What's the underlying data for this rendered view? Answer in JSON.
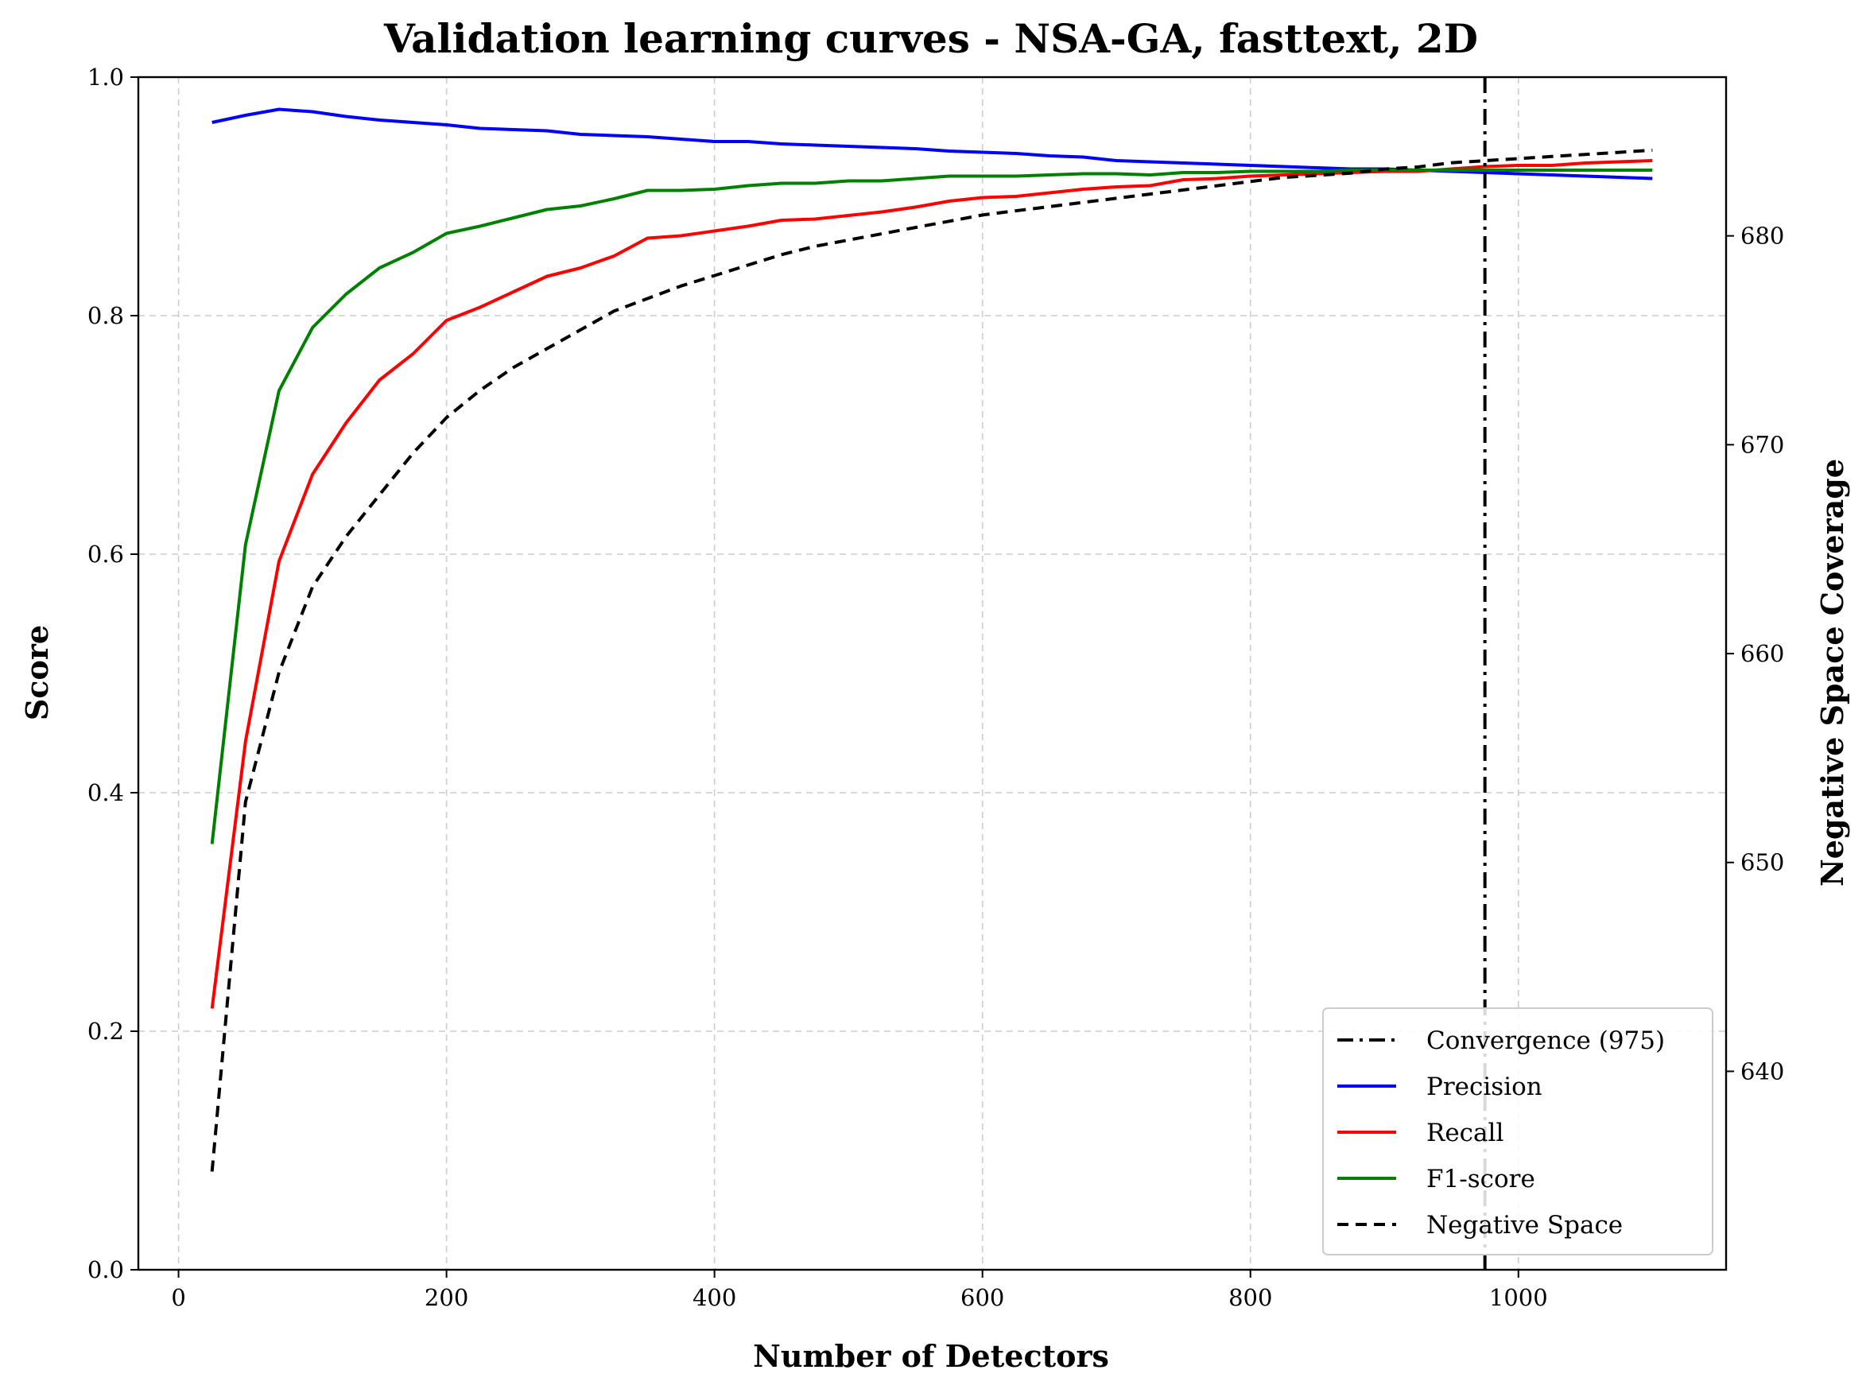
{
  "chart_data": {
    "type": "line",
    "title": "Validation learning curves - NSA-GA, fasttext, 2D",
    "xlabel": "Number of Detectors",
    "ylabel": "Score",
    "y2label": "Negative Space Coverage",
    "xlim": [
      -30,
      1155
    ],
    "ylim": [
      0,
      1
    ],
    "y2lim": [
      630.5,
      687.6
    ],
    "xticks": [
      0,
      200,
      400,
      600,
      800,
      1000
    ],
    "yticks": [
      0.0,
      0.2,
      0.4,
      0.6,
      0.8,
      1.0
    ],
    "y2ticks": [
      640,
      650,
      660,
      670,
      680
    ],
    "grid": true,
    "legend_position": "lower-right",
    "x": [
      25,
      50,
      75,
      100,
      125,
      150,
      175,
      200,
      225,
      250,
      275,
      300,
      325,
      350,
      375,
      400,
      425,
      450,
      475,
      500,
      525,
      550,
      575,
      600,
      625,
      650,
      675,
      700,
      725,
      750,
      775,
      800,
      825,
      850,
      875,
      900,
      925,
      950,
      975,
      1000,
      1025,
      1050,
      1075,
      1100
    ],
    "series": [
      {
        "name": "Precision",
        "axis": "left",
        "color": "#0000ff",
        "dash": "solid",
        "values": [
          0.962,
          0.968,
          0.973,
          0.971,
          0.967,
          0.964,
          0.962,
          0.96,
          0.957,
          0.956,
          0.955,
          0.952,
          0.951,
          0.95,
          0.948,
          0.946,
          0.946,
          0.944,
          0.943,
          0.942,
          0.941,
          0.94,
          0.938,
          0.937,
          0.936,
          0.934,
          0.933,
          0.93,
          0.929,
          0.928,
          0.927,
          0.926,
          0.925,
          0.924,
          0.923,
          0.923,
          0.922,
          0.921,
          0.92,
          0.919,
          0.918,
          0.917,
          0.916,
          0.915
        ]
      },
      {
        "name": "Recall",
        "axis": "left",
        "color": "#ff0000",
        "dash": "solid",
        "values": [
          0.219,
          0.443,
          0.594,
          0.667,
          0.71,
          0.746,
          0.768,
          0.796,
          0.807,
          0.82,
          0.833,
          0.84,
          0.85,
          0.865,
          0.867,
          0.871,
          0.875,
          0.88,
          0.881,
          0.884,
          0.887,
          0.891,
          0.896,
          0.899,
          0.9,
          0.903,
          0.906,
          0.908,
          0.909,
          0.914,
          0.915,
          0.917,
          0.918,
          0.919,
          0.92,
          0.921,
          0.921,
          0.923,
          0.925,
          0.926,
          0.926,
          0.928,
          0.929,
          0.93
        ]
      },
      {
        "name": "F1-score",
        "axis": "left",
        "color": "#008000",
        "dash": "solid",
        "values": [
          0.357,
          0.608,
          0.737,
          0.79,
          0.818,
          0.84,
          0.853,
          0.869,
          0.875,
          0.882,
          0.889,
          0.892,
          0.898,
          0.905,
          0.905,
          0.906,
          0.909,
          0.911,
          0.911,
          0.913,
          0.913,
          0.915,
          0.917,
          0.917,
          0.917,
          0.918,
          0.919,
          0.919,
          0.918,
          0.92,
          0.92,
          0.921,
          0.921,
          0.921,
          0.922,
          0.922,
          0.922,
          0.922,
          0.922,
          0.922,
          0.922,
          0.922,
          0.922,
          0.922
        ]
      },
      {
        "name": "Negative Space",
        "axis": "right",
        "color": "#000000",
        "dash": "dashed",
        "values": [
          635.2,
          652.9,
          659.1,
          663.2,
          665.6,
          667.6,
          669.6,
          671.3,
          672.6,
          673.7,
          674.6,
          675.5,
          676.4,
          677.0,
          677.6,
          678.1,
          678.6,
          679.1,
          679.5,
          679.8,
          680.1,
          680.4,
          680.7,
          681.0,
          681.2,
          681.4,
          681.6,
          681.8,
          682.0,
          682.2,
          682.4,
          682.6,
          682.8,
          682.9,
          683.0,
          683.2,
          683.3,
          683.5,
          683.6,
          683.7,
          683.8,
          683.9,
          684.0,
          684.1
        ]
      }
    ],
    "vlines": [
      {
        "name": "Convergence (975)",
        "x": 975,
        "color": "#000000",
        "dash": "dashdot"
      }
    ],
    "legend": [
      "Convergence (975)",
      "Precision",
      "Recall",
      "F1-score",
      "Negative Space"
    ]
  }
}
